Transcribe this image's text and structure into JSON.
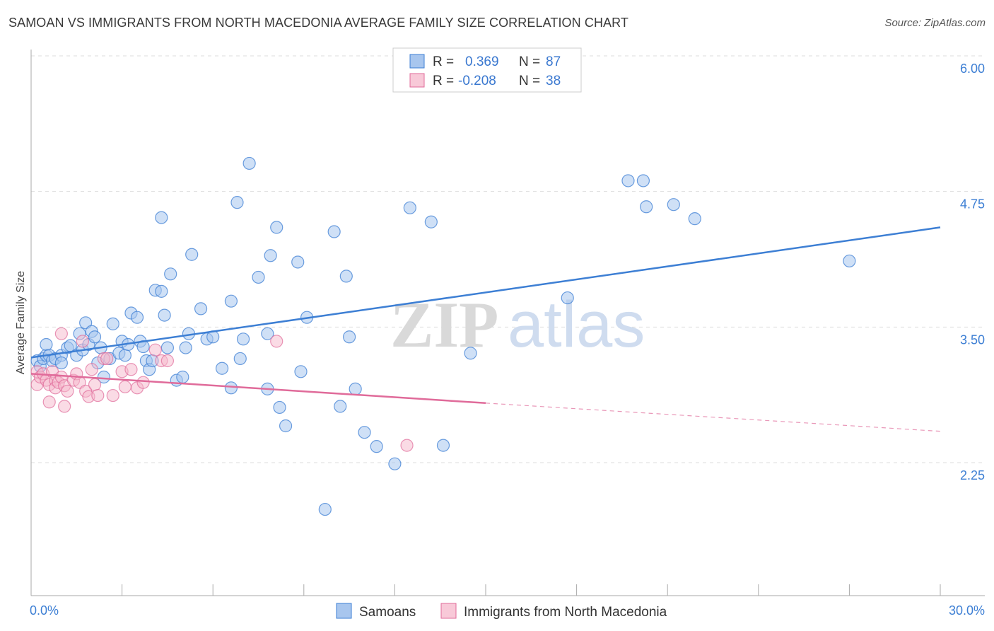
{
  "title": "SAMOAN VS IMMIGRANTS FROM NORTH MACEDONIA AVERAGE FAMILY SIZE CORRELATION CHART",
  "source": "Source: ZipAtlas.com",
  "watermark": {
    "zip": "ZIP",
    "atlas": "atlas"
  },
  "colors": {
    "blue": "#3d7fd4",
    "blue_fill": "#a8c6ee",
    "pink": "#e06b9a",
    "pink_fill": "#f5b7cc",
    "grid": "#dddddd"
  },
  "legend": {
    "r_label": "R =",
    "n_label": "N =",
    "series1": {
      "r": "0.369",
      "n": "87"
    },
    "series2": {
      "r": "-0.208",
      "n": "38"
    }
  },
  "chart_data": {
    "type": "scatter",
    "title": "SAMOAN VS IMMIGRANTS FROM NORTH MACEDONIA AVERAGE FAMILY SIZE CORRELATION CHART",
    "xlabel": "",
    "ylabel": "Average Family Size",
    "xlim": [
      0,
      30
    ],
    "ylim": [
      1.0,
      6.1
    ],
    "x_tick_labels": [
      "0.0%",
      "30.0%"
    ],
    "y_ticks": [
      2.25,
      3.5,
      4.75,
      6.0
    ],
    "y_tick_labels": [
      "2.25",
      "3.50",
      "4.75",
      "6.00"
    ],
    "series": [
      {
        "name": "Samoans",
        "color": "#3d7fd4",
        "trend": {
          "x0": 0,
          "y0": 3.33,
          "x1": 30,
          "y1": 4.53
        },
        "points": [
          [
            0.2,
            3.3
          ],
          [
            0.3,
            3.25
          ],
          [
            0.4,
            3.32
          ],
          [
            0.5,
            3.35
          ],
          [
            0.5,
            3.45
          ],
          [
            0.6,
            3.35
          ],
          [
            0.7,
            3.3
          ],
          [
            0.8,
            3.32
          ],
          [
            1.0,
            3.35
          ],
          [
            1.0,
            3.28
          ],
          [
            1.2,
            3.42
          ],
          [
            1.3,
            3.44
          ],
          [
            1.5,
            3.35
          ],
          [
            1.6,
            3.55
          ],
          [
            1.7,
            3.4
          ],
          [
            1.8,
            3.65
          ],
          [
            1.9,
            3.45
          ],
          [
            2.0,
            3.57
          ],
          [
            2.1,
            3.52
          ],
          [
            2.2,
            3.28
          ],
          [
            2.3,
            3.42
          ],
          [
            2.4,
            3.15
          ],
          [
            2.6,
            3.32
          ],
          [
            2.7,
            3.64
          ],
          [
            2.9,
            3.37
          ],
          [
            3.0,
            3.48
          ],
          [
            3.1,
            3.35
          ],
          [
            3.2,
            3.45
          ],
          [
            3.3,
            3.74
          ],
          [
            3.5,
            3.7
          ],
          [
            3.6,
            3.48
          ],
          [
            3.7,
            3.43
          ],
          [
            3.8,
            3.3
          ],
          [
            3.9,
            3.22
          ],
          [
            4.0,
            3.3
          ],
          [
            4.1,
            3.95
          ],
          [
            4.3,
            3.94
          ],
          [
            4.3,
            4.62
          ],
          [
            4.4,
            3.72
          ],
          [
            4.5,
            3.42
          ],
          [
            4.6,
            4.1
          ],
          [
            4.8,
            3.12
          ],
          [
            5.0,
            3.15
          ],
          [
            5.1,
            3.42
          ],
          [
            5.2,
            3.55
          ],
          [
            5.3,
            4.28
          ],
          [
            5.6,
            3.78
          ],
          [
            5.8,
            3.5
          ],
          [
            6.0,
            3.52
          ],
          [
            6.3,
            3.23
          ],
          [
            6.6,
            3.85
          ],
          [
            6.6,
            3.05
          ],
          [
            6.8,
            4.76
          ],
          [
            6.9,
            3.32
          ],
          [
            7.0,
            3.5
          ],
          [
            7.2,
            5.12
          ],
          [
            7.5,
            4.07
          ],
          [
            7.8,
            3.04
          ],
          [
            7.8,
            3.55
          ],
          [
            7.9,
            4.27
          ],
          [
            8.1,
            4.53
          ],
          [
            8.2,
            2.87
          ],
          [
            8.4,
            2.7
          ],
          [
            8.8,
            4.21
          ],
          [
            8.9,
            3.2
          ],
          [
            9.1,
            3.7
          ],
          [
            9.7,
            1.93
          ],
          [
            10.0,
            4.49
          ],
          [
            10.2,
            2.88
          ],
          [
            10.4,
            4.08
          ],
          [
            10.5,
            3.52
          ],
          [
            10.7,
            3.04
          ],
          [
            11.0,
            2.64
          ],
          [
            11.4,
            2.51
          ],
          [
            12.0,
            2.35
          ],
          [
            12.5,
            4.71
          ],
          [
            13.2,
            4.58
          ],
          [
            13.6,
            2.52
          ],
          [
            14.5,
            3.37
          ],
          [
            17.7,
            3.88
          ],
          [
            19.7,
            4.96
          ],
          [
            20.2,
            4.96
          ],
          [
            20.3,
            4.72
          ],
          [
            21.2,
            4.74
          ],
          [
            21.9,
            4.61
          ],
          [
            27.0,
            4.22
          ]
        ]
      },
      {
        "name": "Immigrants from North Macedonia",
        "color": "#e06b9a",
        "trend": {
          "x0": 0,
          "y0": 3.18,
          "x1": 15,
          "y1": 2.91
        },
        "trend_dashed": {
          "x0": 15,
          "y0": 2.91,
          "x1": 30,
          "y1": 2.65
        },
        "points": [
          [
            0.2,
            3.2
          ],
          [
            0.2,
            3.08
          ],
          [
            0.3,
            3.15
          ],
          [
            0.4,
            3.18
          ],
          [
            0.5,
            3.12
          ],
          [
            0.6,
            3.08
          ],
          [
            0.6,
            2.92
          ],
          [
            0.7,
            3.2
          ],
          [
            0.8,
            3.12
          ],
          [
            0.8,
            3.05
          ],
          [
            0.9,
            3.1
          ],
          [
            1.0,
            3.15
          ],
          [
            1.0,
            3.55
          ],
          [
            1.1,
            3.07
          ],
          [
            1.1,
            2.88
          ],
          [
            1.2,
            3.02
          ],
          [
            1.4,
            3.12
          ],
          [
            1.5,
            3.18
          ],
          [
            1.6,
            3.1
          ],
          [
            1.7,
            3.48
          ],
          [
            1.8,
            3.02
          ],
          [
            1.9,
            2.97
          ],
          [
            2.0,
            3.22
          ],
          [
            2.1,
            3.08
          ],
          [
            2.2,
            2.98
          ],
          [
            2.4,
            3.32
          ],
          [
            2.5,
            3.32
          ],
          [
            2.7,
            2.98
          ],
          [
            3.0,
            3.2
          ],
          [
            3.1,
            3.06
          ],
          [
            3.3,
            3.22
          ],
          [
            3.5,
            3.05
          ],
          [
            3.7,
            3.1
          ],
          [
            4.1,
            3.4
          ],
          [
            4.3,
            3.3
          ],
          [
            4.5,
            3.3
          ],
          [
            8.1,
            3.48
          ],
          [
            12.4,
            2.52
          ]
        ]
      }
    ]
  },
  "bottom_legend": {
    "series1": "Samoans",
    "series2": "Immigrants from North Macedonia"
  }
}
